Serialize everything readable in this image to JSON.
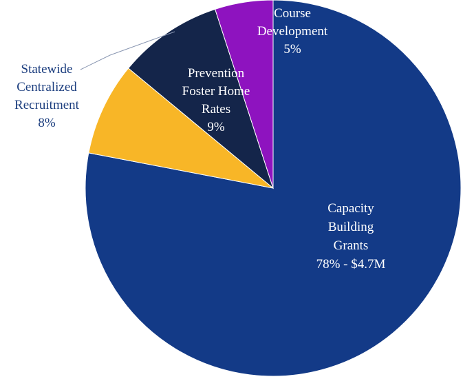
{
  "chart_data": {
    "type": "pie",
    "title": "",
    "slices": [
      {
        "name": "Capacity Building Grants",
        "value": 78,
        "color": "#133A87",
        "label_lines": [
          "Capacity",
          "Building",
          "Grants",
          "78% - $4.7M"
        ],
        "label_color": "#FFFFFF",
        "label_position": "inside"
      },
      {
        "name": "Statewide Centralized Recruitment",
        "value": 8,
        "color": "#F8B627",
        "label_lines": [
          "Statewide",
          "Centralized",
          "Recruitment",
          "8%"
        ],
        "label_color": "#1B3D7E",
        "label_position": "outside-left"
      },
      {
        "name": "Prevention Foster Home Rates",
        "value": 9,
        "color": "#14254A",
        "label_lines": [
          "Prevention",
          "Foster Home",
          "Rates",
          "9%"
        ],
        "label_color": "#FFFFFF",
        "label_position": "inside"
      },
      {
        "name": "Course Development",
        "value": 5,
        "color": "#8E13BF",
        "label_lines": [
          "Course",
          "Development",
          "5%"
        ],
        "label_color": "#FFFFFF",
        "label_position": "inside"
      }
    ],
    "start_angle": "12 o'clock",
    "direction": "clockwise",
    "legend": "none"
  }
}
